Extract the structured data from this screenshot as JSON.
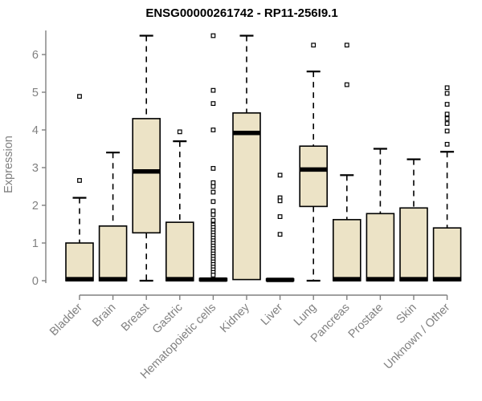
{
  "chart_data": {
    "type": "boxplot",
    "title": "ENSG00000261742 - RP11-256I9.1",
    "ylabel": "Expression",
    "xlabel": "",
    "ylim": [
      0,
      6.6
    ],
    "yticks": [
      0,
      1,
      2,
      3,
      4,
      5,
      6
    ],
    "grid": false,
    "legend": "none",
    "colors": {
      "box_fill": "#ece3c6",
      "box_border": "#000000",
      "median": "#000000",
      "axis": "#808080",
      "tick_label": "#808080",
      "title": "#000000",
      "outlier_fill": "#ffffff"
    },
    "categories": [
      "Bladder",
      "Brain",
      "Breast",
      "Gastric",
      "Hematopoietic cells",
      "Kidney",
      "Liver",
      "Lung",
      "Pancreas",
      "Prostate",
      "Skin",
      "Unknown / Other"
    ],
    "series": [
      {
        "name": "Bladder",
        "q1": 0,
        "median": 0.04,
        "q3": 1.0,
        "whisker_low": 0,
        "whisker_high": 2.2,
        "outliers": [
          2.66,
          4.89
        ]
      },
      {
        "name": "Brain",
        "q1": 0,
        "median": 0.04,
        "q3": 1.45,
        "whisker_low": 0,
        "whisker_high": 3.4,
        "outliers": []
      },
      {
        "name": "Breast",
        "q1": 1.27,
        "median": 2.9,
        "q3": 4.3,
        "whisker_low": 0,
        "whisker_high": 6.5,
        "outliers": []
      },
      {
        "name": "Gastric",
        "q1": 0,
        "median": 0.04,
        "q3": 1.55,
        "whisker_low": 0,
        "whisker_high": 3.7,
        "outliers": [
          3.95
        ]
      },
      {
        "name": "Hematopoietic cells",
        "q1": 0,
        "median": 0.03,
        "q3": 0.06,
        "whisker_low": 0,
        "whisker_high": 0.08,
        "outliers": [
          6.5,
          5.05,
          4.7,
          4.0,
          2.98,
          2.6,
          2.5,
          2.35,
          2.1,
          1.85,
          1.75,
          1.6,
          1.48,
          1.41,
          1.34,
          1.27,
          1.2,
          1.13,
          1.06,
          0.99,
          0.92,
          0.85,
          0.78,
          0.71,
          0.64,
          0.57,
          0.5,
          0.43,
          0.36,
          0.29,
          0.22,
          0.15
        ]
      },
      {
        "name": "Kidney",
        "q1": 0.03,
        "median": 3.92,
        "q3": 4.45,
        "whisker_low": 0,
        "whisker_high": 6.5,
        "outliers": []
      },
      {
        "name": "Liver",
        "q1": 0,
        "median": 0.02,
        "q3": 0.05,
        "whisker_low": 0,
        "whisker_high": 0.06,
        "outliers": [
          2.8,
          2.2,
          2.12,
          1.7,
          1.23
        ]
      },
      {
        "name": "Lung",
        "q1": 1.97,
        "median": 2.95,
        "q3": 3.57,
        "whisker_low": 0,
        "whisker_high": 5.55,
        "outliers": [
          6.25
        ]
      },
      {
        "name": "Pancreas",
        "q1": 0,
        "median": 0.04,
        "q3": 1.62,
        "whisker_low": 0,
        "whisker_high": 2.8,
        "outliers": [
          5.2,
          6.25
        ]
      },
      {
        "name": "Prostate",
        "q1": 0,
        "median": 0.04,
        "q3": 1.78,
        "whisker_low": 0,
        "whisker_high": 3.5,
        "outliers": []
      },
      {
        "name": "Skin",
        "q1": 0,
        "median": 0.04,
        "q3": 1.93,
        "whisker_low": 0,
        "whisker_high": 3.22,
        "outliers": []
      },
      {
        "name": "Unknown / Other",
        "q1": 0,
        "median": 0.04,
        "q3": 1.4,
        "whisker_low": 0,
        "whisker_high": 3.42,
        "outliers": [
          5.12,
          4.97,
          4.68,
          4.42,
          4.3,
          4.17,
          3.97,
          3.62
        ]
      }
    ]
  }
}
